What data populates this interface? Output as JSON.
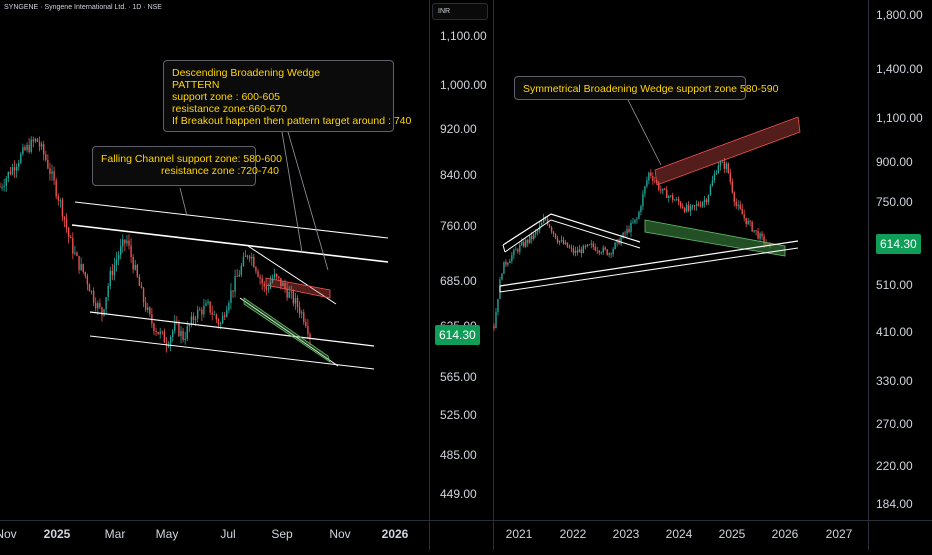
{
  "symbol_title": "SYNGENE · Syngene International Ltd. · 1D · NSE",
  "currency": "INR",
  "colors": {
    "background": "#000000",
    "axis_text": "#d1d4dc",
    "annotation_text": "#ffd600",
    "up_candle": "#26a69a",
    "down_candle": "#ef5350",
    "trendline": "#ffffff",
    "price_tag": "#0f9d58"
  },
  "chart_data": [
    {
      "type": "candlestick",
      "name": "daily",
      "y_ticks": [
        "1,100.00",
        "1,000.00",
        "920.00",
        "840.00",
        "760.00",
        "685.00",
        "625.00",
        "565.00",
        "525.00",
        "485.00",
        "449.00"
      ],
      "x_ticks": [
        "Nov",
        "2025",
        "Mar",
        "May",
        "Jul",
        "Sep",
        "Nov",
        "2026"
      ],
      "last_price": "614.30",
      "price_path": [
        [
          0,
          820
        ],
        [
          6,
          850
        ],
        [
          12,
          880
        ],
        [
          18,
          900
        ],
        [
          22,
          870
        ],
        [
          26,
          830
        ],
        [
          30,
          790
        ],
        [
          34,
          740
        ],
        [
          38,
          710
        ],
        [
          42,
          690
        ],
        [
          46,
          660
        ],
        [
          50,
          640
        ],
        [
          54,
          690
        ],
        [
          58,
          720
        ],
        [
          62,
          740
        ],
        [
          66,
          700
        ],
        [
          70,
          660
        ],
        [
          74,
          630
        ],
        [
          78,
          615
        ],
        [
          82,
          605
        ],
        [
          86,
          625
        ],
        [
          90,
          610
        ],
        [
          96,
          640
        ],
        [
          102,
          650
        ],
        [
          108,
          625
        ],
        [
          112,
          660
        ],
        [
          118,
          700
        ],
        [
          122,
          725
        ],
        [
          126,
          700
        ],
        [
          130,
          670
        ],
        [
          134,
          690
        ],
        [
          138,
          680
        ],
        [
          142,
          665
        ],
        [
          146,
          650
        ],
        [
          150,
          630
        ],
        [
          152,
          614
        ]
      ],
      "annotations": [
        {
          "lines": [
            "Falling Channel support zone: 580-600",
            "resistance zone :720-740"
          ]
        },
        {
          "lines": [
            "Descending Broadening Wedge",
            "PATTERN",
            "support zone : 600-605",
            "resistance zone:660-670",
            "If Breakout happen then pattern target around : 740"
          ]
        }
      ]
    },
    {
      "type": "candlestick",
      "name": "weekly",
      "y_ticks": [
        "1,800.00",
        "1,400.00",
        "1,100.00",
        "900.00",
        "750.00",
        "510.00",
        "410.00",
        "330.00",
        "270.00",
        "220.00",
        "184.00"
      ],
      "x_ticks": [
        "2021",
        "2022",
        "2023",
        "2024",
        "2025",
        "2026",
        "2027"
      ],
      "last_price": "614.30",
      "price_path": [
        [
          2020.9,
          420
        ],
        [
          2021.05,
          560
        ],
        [
          2021.3,
          610
        ],
        [
          2021.6,
          650
        ],
        [
          2021.8,
          700
        ],
        [
          2022.0,
          640
        ],
        [
          2022.3,
          600
        ],
        [
          2022.6,
          620
        ],
        [
          2022.9,
          600
        ],
        [
          2023.1,
          640
        ],
        [
          2023.4,
          700
        ],
        [
          2023.6,
          860
        ],
        [
          2023.8,
          790
        ],
        [
          2024.0,
          760
        ],
        [
          2024.3,
          720
        ],
        [
          2024.6,
          760
        ],
        [
          2024.8,
          890
        ],
        [
          2024.95,
          880
        ],
        [
          2025.1,
          740
        ],
        [
          2025.3,
          690
        ],
        [
          2025.5,
          650
        ],
        [
          2025.7,
          614
        ]
      ],
      "annotations": [
        {
          "lines": [
            "Symmetrical Broadening Wedge support zone 580-590"
          ]
        }
      ]
    }
  ]
}
